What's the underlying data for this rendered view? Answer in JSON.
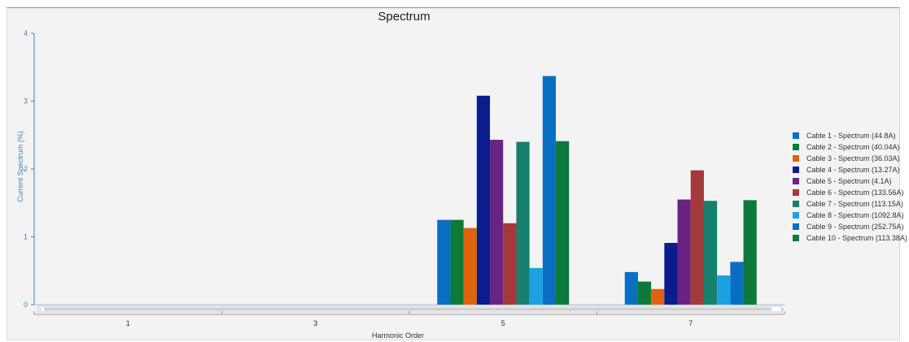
{
  "chart_data": {
    "type": "bar",
    "title": "Spectrum",
    "xlabel": "Harmonic Order",
    "ylabel": "Current Spectrum (%)",
    "categories": [
      "1",
      "3",
      "5",
      "7"
    ],
    "ylim": [
      0,
      4
    ],
    "yticks": [
      "0",
      "1",
      "2",
      "3",
      "4"
    ],
    "grid": false,
    "legend_position": "right",
    "series": [
      {
        "name": "Cable 1 - Spectrum (44.8A)",
        "color": "#0a6fc2",
        "values": [
          0,
          0,
          1.25,
          0.48
        ]
      },
      {
        "name": "Cable 2 - Spectrum (40.04A)",
        "color": "#0c7a3a",
        "values": [
          0,
          0,
          1.25,
          0.34
        ]
      },
      {
        "name": "Cable 3 - Spectrum (36.03A)",
        "color": "#e0620d",
        "values": [
          0,
          0,
          1.13,
          0.23
        ]
      },
      {
        "name": "Cable 4 - Spectrum (13.27A)",
        "color": "#0b1c8c",
        "values": [
          0,
          0,
          3.08,
          0.91
        ]
      },
      {
        "name": "Cable 5 - Spectrum (4.1A)",
        "color": "#6a2382",
        "values": [
          0,
          0,
          2.43,
          1.55
        ]
      },
      {
        "name": "Cable 6 - Spectrum (133.56A)",
        "color": "#a3393b",
        "values": [
          0,
          0,
          1.2,
          1.98
        ]
      },
      {
        "name": "Cable 7 - Spectrum (113.15A)",
        "color": "#16806d",
        "values": [
          0,
          0,
          2.4,
          1.53
        ]
      },
      {
        "name": "Cable 8 - Spectrum (1092.8A)",
        "color": "#1ba1e2",
        "values": [
          0,
          0,
          0.54,
          0.43
        ]
      },
      {
        "name": "Cable 9 - Spectrum (252.75A)",
        "color": "#0a6fc2",
        "values": [
          0,
          0,
          3.37,
          0.63
        ]
      },
      {
        "name": "Cable 10 - Spectrum (113.38A)",
        "color": "#0c7a3a",
        "values": [
          0,
          0,
          2.41,
          1.54
        ]
      }
    ]
  }
}
